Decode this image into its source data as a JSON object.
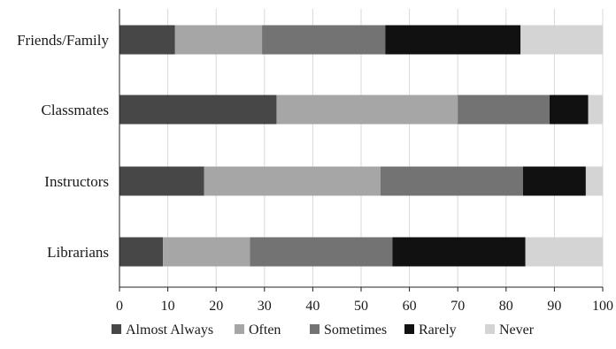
{
  "chart_data": {
    "type": "bar",
    "orientation": "horizontal",
    "stacked": true,
    "categories": [
      "Friends/Family",
      "Classmates",
      "Instructors",
      "Librarians"
    ],
    "series": [
      {
        "name": "Almost Always",
        "color": "#474747",
        "values": [
          11.5,
          32.5,
          17.5,
          9
        ]
      },
      {
        "name": "Often",
        "color": "#a6a6a6",
        "values": [
          18,
          37.5,
          36.5,
          18
        ]
      },
      {
        "name": "Sometimes",
        "color": "#737373",
        "values": [
          25.5,
          19,
          29.5,
          29.5
        ]
      },
      {
        "name": "Rarely",
        "color": "#111111",
        "values": [
          28,
          8,
          13,
          27.5
        ]
      },
      {
        "name": "Never",
        "color": "#d4d4d4",
        "values": [
          17,
          3,
          3.5,
          16
        ]
      }
    ],
    "xlim": [
      0,
      100
    ],
    "xticks": [
      0,
      10,
      20,
      30,
      40,
      50,
      60,
      70,
      80,
      90,
      100
    ],
    "title": "",
    "xlabel": "",
    "ylabel": "",
    "grid": true,
    "legend_position": "bottom"
  }
}
